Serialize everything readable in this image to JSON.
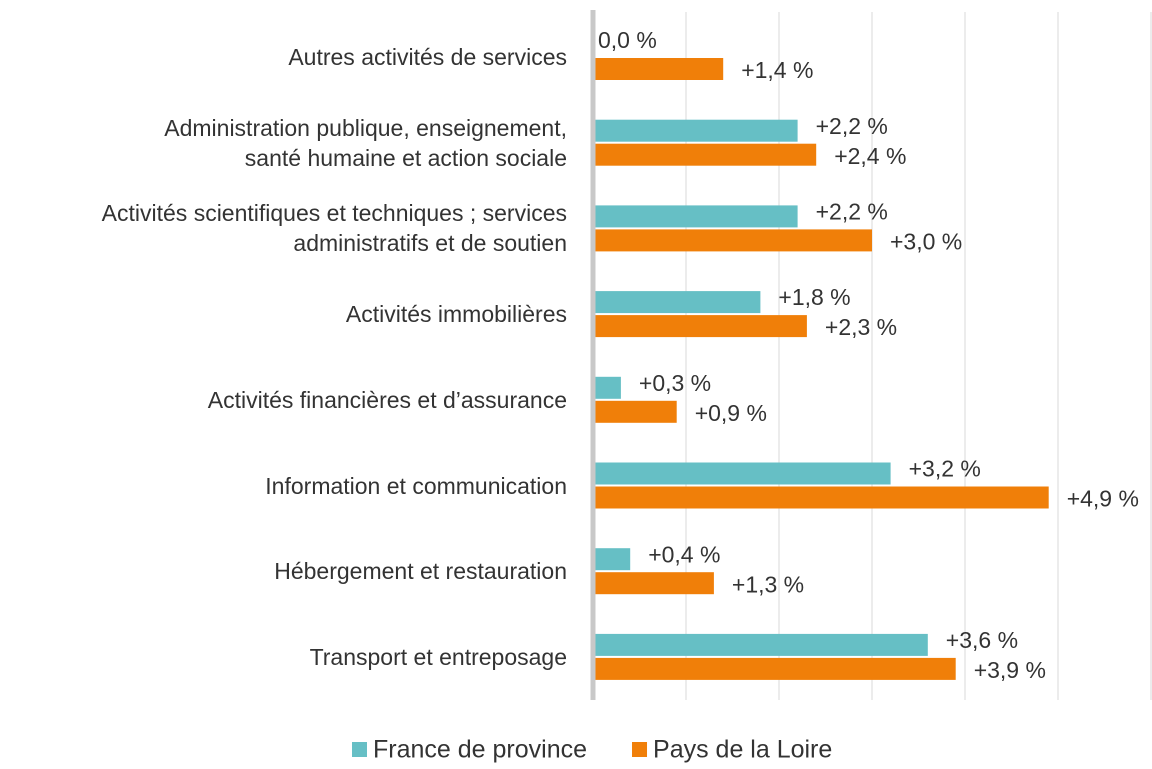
{
  "chart_data": {
    "type": "barh",
    "categories": [
      "Autres activités de services",
      "Administration publique, enseignement,\nsanté humaine et action sociale",
      "Activités scientifiques et techniques ; services\nadministratifs et de soutien",
      "Activités immobilières",
      "Activités financières et d’assurance",
      "Information et communication",
      "Hébergement et restauration",
      "Transport et entreposage"
    ],
    "series": [
      {
        "name": "France de province",
        "color": "#66bfc5",
        "values": [
          0.0,
          2.2,
          2.2,
          1.8,
          0.3,
          3.2,
          0.4,
          3.6
        ],
        "value_labels": [
          "0,0 %",
          "+2,2 %",
          "+2,2 %",
          "+1,8 %",
          "+0,3 %",
          "+3,2 %",
          "+0,4 %",
          "+3,6 %"
        ]
      },
      {
        "name": "Pays de la Loire",
        "color": "#f07f09",
        "values": [
          1.4,
          2.4,
          3.0,
          2.3,
          0.9,
          4.9,
          1.3,
          3.9
        ],
        "value_labels": [
          "+1,4 %",
          "+2,4 %",
          "+3,0 %",
          "+2,3 %",
          "+0,9 %",
          "+4,9 %",
          "+1,3 %",
          "+3,9 %"
        ]
      }
    ],
    "xlim": [
      0,
      6
    ],
    "xticks": [
      0,
      1,
      2,
      3,
      4,
      5,
      6
    ],
    "grid": true,
    "legend": "bottom"
  }
}
